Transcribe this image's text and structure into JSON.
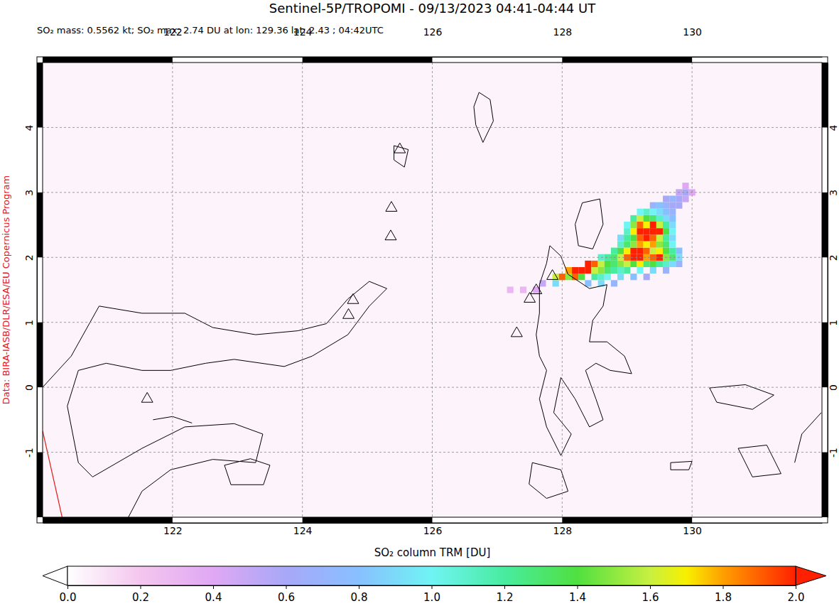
{
  "chart_data": {
    "type": "heatmap_map",
    "title": "Sentinel-5P/TROPOMI - 09/13/2023 04:41-04:44 UT",
    "subtitle": "SO₂ mass: 0.5562 kt; SO₂ max: 2.74 DU at lon: 129.36 lat: 2.43 ; 04:42UTC",
    "credit": "Data: BIRA-IASB/DLR/ESA/EU Copernicus Program",
    "xlim": [
      120,
      132
    ],
    "ylim": [
      -2,
      5
    ],
    "xticks": [
      122,
      124,
      126,
      128,
      130
    ],
    "yticks": [
      -1,
      0,
      1,
      2,
      3,
      4
    ],
    "grid": true,
    "cell_size": 0.1,
    "cells": [
      [
        127.2,
        1.5,
        0.3
      ],
      [
        127.4,
        1.5,
        0.3
      ],
      [
        127.6,
        1.5,
        0.4
      ],
      [
        127.7,
        1.6,
        0.5
      ],
      [
        127.9,
        1.6,
        0.9
      ],
      [
        128.4,
        1.6,
        0.8
      ],
      [
        128.6,
        1.6,
        0.9
      ],
      [
        128.8,
        1.6,
        0.7
      ],
      [
        127.9,
        1.7,
        1.6
      ],
      [
        128.0,
        1.7,
        1.9
      ],
      [
        128.1,
        1.7,
        1.5
      ],
      [
        128.2,
        1.7,
        1.9
      ],
      [
        128.3,
        1.7,
        1.4
      ],
      [
        128.5,
        1.7,
        1.2
      ],
      [
        128.6,
        1.7,
        1.1
      ],
      [
        128.7,
        1.7,
        1.0
      ],
      [
        128.9,
        1.7,
        0.9
      ],
      [
        129.1,
        1.7,
        0.8
      ],
      [
        129.3,
        1.7,
        0.6
      ],
      [
        128.1,
        1.8,
        1.8
      ],
      [
        128.2,
        1.8,
        2.0
      ],
      [
        128.3,
        1.8,
        2.1
      ],
      [
        128.4,
        1.8,
        2.2
      ],
      [
        128.5,
        1.8,
        1.6
      ],
      [
        128.6,
        1.8,
        1.5
      ],
      [
        128.7,
        1.8,
        1.3
      ],
      [
        128.8,
        1.8,
        1.2
      ],
      [
        128.9,
        1.8,
        1.1
      ],
      [
        129.0,
        1.8,
        1.2
      ],
      [
        129.2,
        1.8,
        1.0
      ],
      [
        129.4,
        1.8,
        0.9
      ],
      [
        129.6,
        1.8,
        0.7
      ],
      [
        128.4,
        1.9,
        2.1
      ],
      [
        128.5,
        1.9,
        1.9
      ],
      [
        128.6,
        1.9,
        1.6
      ],
      [
        128.7,
        1.9,
        1.4
      ],
      [
        128.8,
        1.9,
        1.3
      ],
      [
        128.9,
        1.9,
        1.5
      ],
      [
        129.0,
        1.9,
        1.6
      ],
      [
        129.1,
        1.9,
        1.4
      ],
      [
        129.2,
        1.9,
        1.7
      ],
      [
        129.3,
        1.9,
        1.3
      ],
      [
        129.4,
        1.9,
        1.4
      ],
      [
        129.5,
        1.9,
        1.2
      ],
      [
        129.6,
        1.9,
        1.1
      ],
      [
        129.7,
        1.9,
        0.9
      ],
      [
        129.8,
        1.9,
        0.7
      ],
      [
        128.6,
        2.0,
        1.1
      ],
      [
        128.7,
        2.0,
        1.2
      ],
      [
        128.8,
        2.0,
        1.3
      ],
      [
        128.9,
        2.0,
        1.6
      ],
      [
        129.0,
        2.0,
        1.9
      ],
      [
        129.1,
        2.0,
        2.1
      ],
      [
        129.2,
        2.0,
        2.0
      ],
      [
        129.3,
        2.0,
        1.8
      ],
      [
        129.4,
        2.0,
        1.9
      ],
      [
        129.5,
        2.0,
        2.0
      ],
      [
        129.6,
        2.0,
        1.5
      ],
      [
        129.7,
        2.0,
        1.3
      ],
      [
        129.8,
        2.0,
        0.9
      ],
      [
        128.8,
        2.1,
        1.2
      ],
      [
        128.9,
        2.1,
        1.4
      ],
      [
        129.0,
        2.1,
        1.7
      ],
      [
        129.1,
        2.1,
        2.0
      ],
      [
        129.2,
        2.1,
        2.2
      ],
      [
        129.3,
        2.1,
        1.9
      ],
      [
        129.4,
        2.1,
        1.6
      ],
      [
        129.5,
        2.1,
        1.7
      ],
      [
        129.6,
        2.1,
        1.4
      ],
      [
        129.7,
        2.1,
        1.2
      ],
      [
        129.8,
        2.1,
        0.8
      ],
      [
        128.9,
        2.2,
        1.1
      ],
      [
        129.0,
        2.2,
        1.3
      ],
      [
        129.1,
        2.2,
        1.5
      ],
      [
        129.2,
        2.2,
        1.8
      ],
      [
        129.3,
        2.2,
        1.7
      ],
      [
        129.4,
        2.2,
        1.8
      ],
      [
        129.5,
        2.2,
        1.5
      ],
      [
        129.6,
        2.2,
        1.3
      ],
      [
        129.7,
        2.2,
        1.0
      ],
      [
        128.9,
        2.3,
        0.9
      ],
      [
        129.0,
        2.3,
        1.2
      ],
      [
        129.1,
        2.3,
        1.4
      ],
      [
        129.2,
        2.3,
        1.9
      ],
      [
        129.3,
        2.3,
        2.1
      ],
      [
        129.4,
        2.3,
        1.9
      ],
      [
        129.5,
        2.3,
        1.6
      ],
      [
        129.6,
        2.3,
        1.2
      ],
      [
        129.7,
        2.3,
        0.9
      ],
      [
        129.0,
        2.4,
        1.1
      ],
      [
        129.1,
        2.4,
        1.7
      ],
      [
        129.2,
        2.4,
        2.0
      ],
      [
        129.3,
        2.4,
        2.3
      ],
      [
        129.4,
        2.4,
        2.74
      ],
      [
        129.5,
        2.4,
        2.0
      ],
      [
        129.6,
        2.4,
        1.4
      ],
      [
        129.7,
        2.4,
        1.0
      ],
      [
        129.0,
        2.5,
        1.0
      ],
      [
        129.1,
        2.5,
        1.5
      ],
      [
        129.2,
        2.5,
        1.9
      ],
      [
        129.3,
        2.5,
        1.7
      ],
      [
        129.4,
        2.5,
        2.1
      ],
      [
        129.5,
        2.5,
        1.6
      ],
      [
        129.6,
        2.5,
        1.2
      ],
      [
        129.7,
        2.5,
        0.9
      ],
      [
        129.1,
        2.6,
        1.2
      ],
      [
        129.2,
        2.6,
        1.6
      ],
      [
        129.3,
        2.6,
        1.4
      ],
      [
        129.4,
        2.6,
        1.3
      ],
      [
        129.5,
        2.6,
        1.1
      ],
      [
        129.6,
        2.6,
        0.9
      ],
      [
        129.7,
        2.6,
        0.8
      ],
      [
        129.2,
        2.7,
        1.0
      ],
      [
        129.3,
        2.7,
        1.1
      ],
      [
        129.4,
        2.7,
        1.0
      ],
      [
        129.5,
        2.7,
        0.9
      ],
      [
        129.6,
        2.7,
        0.8
      ],
      [
        129.7,
        2.7,
        0.7
      ],
      [
        129.4,
        2.8,
        0.7
      ],
      [
        129.5,
        2.8,
        0.8
      ],
      [
        129.6,
        2.8,
        0.7
      ],
      [
        129.7,
        2.8,
        0.6
      ],
      [
        129.8,
        2.8,
        0.6
      ],
      [
        129.6,
        2.9,
        0.6
      ],
      [
        129.7,
        2.9,
        0.7
      ],
      [
        129.8,
        2.9,
        0.6
      ],
      [
        129.9,
        2.9,
        0.5
      ],
      [
        129.8,
        3.0,
        0.5
      ],
      [
        129.9,
        3.0,
        0.6
      ],
      [
        130.0,
        3.0,
        0.4
      ],
      [
        129.9,
        3.1,
        0.4
      ]
    ],
    "colorbar": {
      "label": "SO₂ column TRM [DU]",
      "range": [
        0,
        2
      ],
      "ticks": [
        {
          "value": 0,
          "label": "0.0"
        },
        0.2,
        0.4,
        0.6,
        0.8,
        {
          "value": 1,
          "label": "1.0"
        },
        1.2,
        1.4,
        1.6,
        1.8,
        {
          "value": 2,
          "label": "2.0"
        }
      ]
    },
    "volcanoes": [
      [
        121.61,
        -0.18
      ],
      [
        124.78,
        1.34
      ],
      [
        124.71,
        1.11
      ],
      [
        125.37,
        2.76
      ],
      [
        125.36,
        2.32
      ],
      [
        125.5,
        3.66
      ],
      [
        127.85,
        1.71
      ],
      [
        127.6,
        1.49
      ],
      [
        127.5,
        1.36
      ],
      [
        127.3,
        0.83
      ]
    ],
    "swath_edge": [
      [
        120.0,
        -0.67
      ],
      [
        120.3,
        -2.0
      ]
    ],
    "coastlines": [
      [
        [
          120.0,
          0.0
        ],
        [
          120.44,
          0.48
        ],
        [
          120.87,
          1.25
        ],
        [
          121.53,
          1.14
        ],
        [
          122.19,
          1.14
        ],
        [
          122.62,
          0.92
        ],
        [
          123.28,
          0.81
        ],
        [
          123.93,
          0.87
        ],
        [
          124.37,
          0.98
        ],
        [
          124.7,
          1.36
        ],
        [
          125.03,
          1.63
        ],
        [
          125.3,
          1.52
        ],
        [
          125.03,
          1.25
        ],
        [
          124.7,
          0.81
        ],
        [
          124.15,
          0.48
        ],
        [
          123.72,
          0.32
        ],
        [
          122.95,
          0.43
        ],
        [
          122.51,
          0.37
        ],
        [
          121.97,
          0.26
        ],
        [
          121.53,
          0.26
        ],
        [
          120.98,
          0.37
        ],
        [
          120.55,
          0.26
        ],
        [
          120.38,
          -0.29
        ],
        [
          120.55,
          -1.16
        ],
        [
          120.77,
          -1.38
        ],
        [
          121.53,
          -0.94
        ],
        [
          122.19,
          -0.61
        ],
        [
          122.95,
          -0.56
        ],
        [
          123.39,
          -0.72
        ],
        [
          123.28,
          -1.16
        ],
        [
          122.62,
          -1.11
        ],
        [
          121.97,
          -1.27
        ],
        [
          121.53,
          -1.6
        ],
        [
          121.31,
          -2.02
        ]
      ],
      [
        [
          121.7,
          -0.5
        ],
        [
          122.0,
          -0.45
        ],
        [
          122.3,
          -0.55
        ]
      ],
      [
        [
          122.8,
          -1.2
        ],
        [
          123.2,
          -1.1
        ],
        [
          123.5,
          -1.2
        ],
        [
          123.4,
          -1.5
        ],
        [
          122.9,
          -1.5
        ],
        [
          122.8,
          -1.2
        ]
      ],
      [
        [
          127.81,
          2.18
        ],
        [
          127.98,
          2.02
        ],
        [
          128.09,
          1.74
        ],
        [
          128.42,
          1.52
        ],
        [
          128.69,
          1.58
        ],
        [
          128.63,
          1.25
        ],
        [
          128.47,
          1.03
        ],
        [
          128.42,
          0.7
        ],
        [
          128.69,
          0.7
        ],
        [
          128.96,
          0.48
        ],
        [
          129.07,
          0.21
        ],
        [
          128.74,
          0.26
        ],
        [
          128.52,
          0.37
        ],
        [
          128.36,
          0.26
        ],
        [
          128.52,
          -0.18
        ],
        [
          128.63,
          -0.5
        ],
        [
          128.42,
          -0.61
        ],
        [
          128.2,
          -0.18
        ],
        [
          127.98,
          0.15
        ],
        [
          127.87,
          -0.39
        ],
        [
          128.14,
          -0.72
        ],
        [
          127.98,
          -1.05
        ],
        [
          127.76,
          -0.61
        ],
        [
          127.65,
          -0.18
        ],
        [
          127.76,
          0.26
        ],
        [
          127.65,
          0.48
        ],
        [
          127.6,
          0.81
        ],
        [
          127.65,
          1.14
        ],
        [
          127.65,
          1.58
        ],
        [
          127.76,
          1.91
        ],
        [
          127.81,
          2.18
        ]
      ],
      [
        [
          128.31,
          2.84
        ],
        [
          128.58,
          2.9
        ],
        [
          128.63,
          2.51
        ],
        [
          128.47,
          2.13
        ],
        [
          128.25,
          2.18
        ],
        [
          128.2,
          2.51
        ],
        [
          128.31,
          2.84
        ]
      ],
      [
        [
          126.72,
          4.54
        ],
        [
          126.89,
          4.43
        ],
        [
          126.94,
          4.1
        ],
        [
          126.78,
          3.77
        ],
        [
          126.67,
          4.04
        ],
        [
          126.64,
          4.32
        ],
        [
          126.72,
          4.54
        ]
      ],
      [
        [
          125.41,
          3.72
        ],
        [
          125.63,
          3.66
        ],
        [
          125.57,
          3.39
        ],
        [
          125.41,
          3.5
        ],
        [
          125.41,
          3.72
        ]
      ],
      [
        [
          129.67,
          -1.16
        ],
        [
          130.0,
          -1.14
        ],
        [
          129.95,
          -1.27
        ],
        [
          129.67,
          -1.27
        ],
        [
          129.67,
          -1.16
        ]
      ],
      [
        [
          127.54,
          -1.16
        ],
        [
          127.98,
          -1.27
        ],
        [
          128.09,
          -1.6
        ],
        [
          127.76,
          -1.71
        ],
        [
          127.49,
          -1.49
        ],
        [
          127.54,
          -1.16
        ]
      ],
      [
        [
          130.27,
          -0.01
        ],
        [
          130.82,
          0.04
        ],
        [
          131.26,
          -0.12
        ],
        [
          130.93,
          -0.34
        ],
        [
          130.38,
          -0.23
        ],
        [
          130.27,
          -0.01
        ]
      ],
      [
        [
          130.71,
          -0.94
        ],
        [
          131.15,
          -0.89
        ],
        [
          131.37,
          -1.33
        ],
        [
          130.93,
          -1.38
        ],
        [
          130.71,
          -0.94
        ]
      ],
      [
        [
          131.99,
          -0.39
        ],
        [
          131.69,
          -0.72
        ],
        [
          131.58,
          -1.16
        ]
      ]
    ]
  }
}
